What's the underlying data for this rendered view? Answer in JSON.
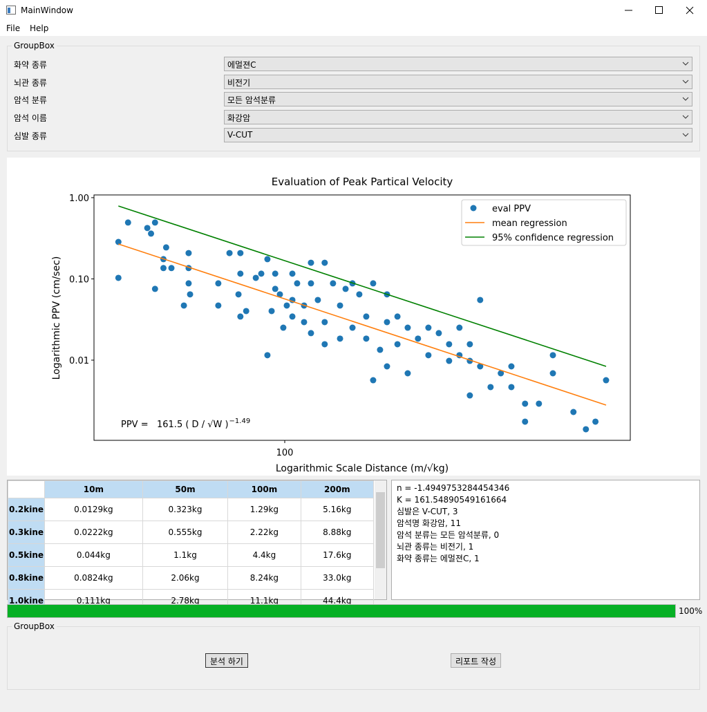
{
  "window": {
    "title": "MainWindow"
  },
  "menu": [
    "File",
    "Help"
  ],
  "form": {
    "title": "GroupBox",
    "fields": [
      {
        "label": "화약 종류",
        "value": "에멀젼C"
      },
      {
        "label": "뇌관 종류",
        "value": "비전기"
      },
      {
        "label": "암석 분류",
        "value": "모든 암석분류"
      },
      {
        "label": "암석 이름",
        "value": "화강암"
      },
      {
        "label": "심발 종류",
        "value": "V-CUT"
      }
    ]
  },
  "chart_data": {
    "type": "scatter",
    "title": "Evaluation of Peak Partical Velocity",
    "x_label": "Logarithmic Scale Distance (m/√kg)",
    "y_label": "Logarithmic PPV (cm/sec)",
    "x_log": true,
    "y_log": true,
    "grid": false,
    "legend": "upper right",
    "xlim": [
      30.2,
      875
    ],
    "xticks": [
      100
    ],
    "ylim": [
      0.00103,
      1.08
    ],
    "yticks": [
      {
        "value": 1,
        "label": "1.00"
      },
      {
        "value": 0.1,
        "label": "0.10"
      },
      {
        "value": 0.01,
        "label": "0.01"
      }
    ],
    "annotation": "PPV =   161.5 ( D / √W )",
    "annotation_exponent": "−1.49",
    "series": [
      {
        "name": "eval PPV",
        "type": "scatter",
        "color": "#1f77b4",
        "x": [
          35.2,
          35.2,
          37.4,
          42.2,
          43.2,
          44.3,
          44.3,
          46.7,
          46.7,
          47.5,
          49.1,
          53.1,
          54.7,
          54.7,
          54.7,
          55.2,
          65.9,
          65.9,
          70.7,
          74.8,
          75.7,
          75.7,
          75.7,
          78.5,
          83.4,
          86.3,
          89.7,
          89.7,
          92.1,
          94.2,
          94.2,
          97.0,
          99.1,
          101.3,
          104.9,
          104.9,
          104.9,
          108.1,
          112.9,
          112.9,
          117.9,
          117.9,
          117.9,
          123.1,
          128.5,
          128.5,
          128.5,
          135.4,
          141.5,
          141.5,
          146.5,
          153.0,
          153.0,
          159.7,
          166.8,
          166.8,
          174.2,
          174.2,
          181.9,
          190.0,
          190.0,
          190.0,
          202.9,
          202.9,
          216.4,
          216.4,
          230.8,
          246.4,
          246.4,
          263.0,
          280.6,
          280.6,
          299.4,
          299.4,
          319.6,
          319.6,
          319.6,
          341.0,
          341.0,
          364.0,
          388.2,
          414.8,
          414.8,
          452.0,
          452.0,
          493.1,
          538.3,
          538.3,
          612.4,
          662.2,
          703.1,
          751.6
        ],
        "y": [
          0.103,
          0.285,
          0.494,
          0.423,
          0.361,
          0.494,
          0.0753,
          0.175,
          0.136,
          0.244,
          0.136,
          0.047,
          0.208,
          0.136,
          0.0881,
          0.0645,
          0.0881,
          0.047,
          0.208,
          0.0645,
          0.116,
          0.208,
          0.0344,
          0.0402,
          0.103,
          0.116,
          0.175,
          0.0115,
          0.0402,
          0.116,
          0.0753,
          0.0645,
          0.0251,
          0.047,
          0.116,
          0.055,
          0.0344,
          0.0881,
          0.047,
          0.0294,
          0.158,
          0.0881,
          0.0215,
          0.055,
          0.158,
          0.0294,
          0.0157,
          0.0881,
          0.047,
          0.0184,
          0.0753,
          0.0251,
          0.0881,
          0.0645,
          0.0344,
          0.0184,
          0.0881,
          0.00566,
          0.0134,
          0.0645,
          0.0294,
          0.00838,
          0.0344,
          0.0157,
          0.0251,
          0.00689,
          0.0184,
          0.0251,
          0.0115,
          0.0215,
          0.0157,
          0.0098,
          0.0251,
          0.0115,
          0.00368,
          0.0098,
          0.0157,
          0.055,
          0.00838,
          0.00466,
          0.00689,
          0.00838,
          0.00466,
          0.00175,
          0.00291,
          0.00291,
          0.00689,
          0.0115,
          0.0023,
          0.00141,
          0.00175,
          0.00566
        ]
      },
      {
        "name": "mean regression",
        "type": "line",
        "color": "#ff7f0e",
        "x": [
          35.2,
          751.6
        ],
        "y": [
          0.269,
          0.0028
        ]
      },
      {
        "name": "95% confidence regression",
        "type": "line",
        "color": "#008000",
        "x": [
          35.2,
          751.6
        ],
        "y": [
          0.79,
          0.00838
        ]
      }
    ]
  },
  "table": {
    "columns": [
      "10m",
      "50m",
      "100m",
      "200m"
    ],
    "rows": [
      {
        "header": "0.2kine",
        "cells": [
          "0.0129kg",
          "0.323kg",
          "1.29kg",
          "5.16kg"
        ]
      },
      {
        "header": "0.3kine",
        "cells": [
          "0.0222kg",
          "0.555kg",
          "2.22kg",
          "8.88kg"
        ]
      },
      {
        "header": "0.5kine",
        "cells": [
          "0.044kg",
          "1.1kg",
          "4.4kg",
          "17.6kg"
        ]
      },
      {
        "header": "0.8kine",
        "cells": [
          "0.0824kg",
          "2.06kg",
          "8.24kg",
          "33.0kg"
        ]
      },
      {
        "header": "1.0kine",
        "cells": [
          "0.111kg",
          "2.78kg",
          "11.1kg",
          "44.4kg"
        ]
      }
    ]
  },
  "log": [
    "n = -1.4949753284454346",
    "K = 161.54890549161664",
    "심발은 V-CUT, 3",
    "암석명 화강암, 11",
    "암석 분류는 모든 암석분류, 0",
    "뇌관 종류는 비전기, 1",
    "화약 종류는 에멀젼C, 1"
  ],
  "progress": {
    "value": 100,
    "label": "100%",
    "max": 100
  },
  "actions": {
    "title": "GroupBox",
    "buttons": [
      "분석 하기",
      "리포트 작성"
    ]
  }
}
